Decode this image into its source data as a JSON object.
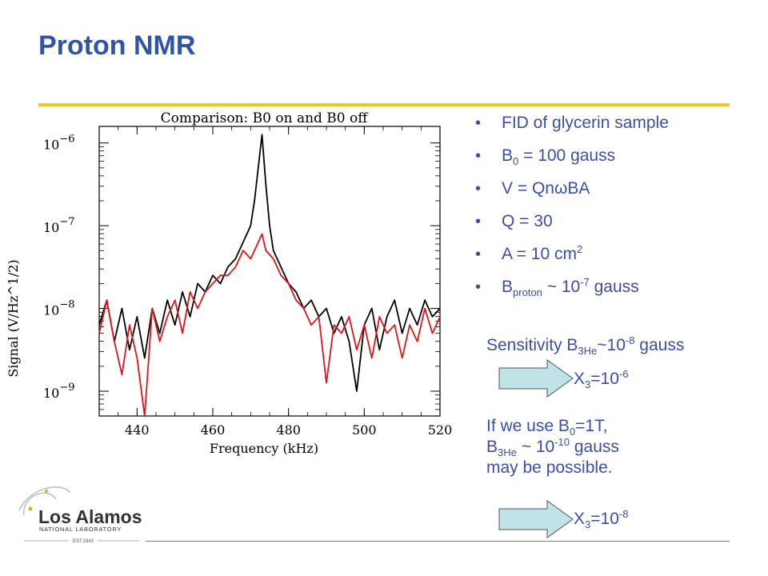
{
  "slide": {
    "title": "Proton NMR"
  },
  "bullets": [
    {
      "pre": "FID of glycerin sample",
      "sub": "",
      "mid": "",
      "sup": "",
      "post": ""
    },
    {
      "pre": "B",
      "sub": "0",
      "mid": " = 100 gauss",
      "sup": "",
      "post": ""
    },
    {
      "pre": "V = QnωBA",
      "sub": "",
      "mid": "",
      "sup": "",
      "post": ""
    },
    {
      "pre": "Q = 30",
      "sub": "",
      "mid": "",
      "sup": "",
      "post": ""
    },
    {
      "pre": "A = 10 cm",
      "sub": "",
      "mid": "",
      "sup": "2",
      "post": ""
    },
    {
      "pre": "B",
      "sub": "proton",
      "mid": " ~ 10",
      "sup": "-7",
      "post": " gauss"
    }
  ],
  "sensitivity": {
    "pre": "Sensitivity B",
    "sub": "3He",
    "mid": "~10",
    "sup": "-8",
    "post": " gauss"
  },
  "x3_first": {
    "pre": "X",
    "sub": "3",
    "mid": "=10",
    "sup": "-6"
  },
  "x3_second": {
    "pre": "X",
    "sub": "3",
    "mid": "=10",
    "sup": "-8"
  },
  "paragraph": {
    "l1_pre": "If we use B",
    "l1_sub": "0",
    "l1_post": "=1T,",
    "l2_pre": "B",
    "l2_sub": "3He",
    "l2_mid": " ~ 10",
    "l2_sup": "-10",
    "l2_post": " gauss",
    "l3": "may be possible."
  },
  "logo": {
    "name": "Los Alamos",
    "subtitle": "NATIONAL LABORATORY",
    "est": "EST.1943",
    "icon": "atom-orbit-icon"
  },
  "colors": {
    "title": "#2f56a6",
    "text": "#3d4fa5",
    "rule": "#f2c232",
    "arrow_fill": "#bfe3e6",
    "series_black": "#000000",
    "series_red": "#e0141b"
  },
  "chart_data": {
    "type": "line",
    "title": "Comparison: B0 on and B0 off",
    "xlabel": "Frequency (kHz)",
    "ylabel": "Signal (V/Hz^1/2)",
    "xlim": [
      430,
      520
    ],
    "ylim_log10": [
      -9.3,
      -5.8
    ],
    "y_scale": "log",
    "x_ticks": [
      "440",
      "460",
      "480",
      "500",
      "520"
    ],
    "x_tick_values": [
      440,
      460,
      480,
      500,
      520
    ],
    "y_ticks": [
      {
        "base": "10",
        "exp": "−6",
        "value": -6
      },
      {
        "base": "10",
        "exp": "−7",
        "value": -7
      },
      {
        "base": "10",
        "exp": "−8",
        "value": -8
      },
      {
        "base": "10",
        "exp": "−9",
        "value": -9
      }
    ],
    "series": [
      {
        "color": "black",
        "x": [
          430,
          432,
          434,
          436,
          438,
          440,
          442,
          444,
          446,
          448,
          450,
          452,
          454,
          456,
          458,
          460,
          462,
          464,
          466,
          468,
          470,
          471,
          472,
          473,
          474,
          475,
          476,
          478,
          480,
          482,
          484,
          486,
          488,
          490,
          492,
          494,
          496,
          498,
          500,
          502,
          504,
          506,
          508,
          510,
          512,
          514,
          516,
          518,
          520
        ],
        "log10y": [
          -8.2,
          -7.9,
          -8.4,
          -8.0,
          -8.5,
          -8.1,
          -8.6,
          -8.0,
          -8.3,
          -7.9,
          -8.2,
          -7.8,
          -8.1,
          -7.7,
          -7.8,
          -7.6,
          -7.7,
          -7.5,
          -7.4,
          -7.2,
          -7.0,
          -6.7,
          -6.3,
          -5.9,
          -6.5,
          -7.0,
          -7.3,
          -7.5,
          -7.7,
          -7.8,
          -8.0,
          -7.9,
          -8.1,
          -8.0,
          -8.3,
          -8.1,
          -8.4,
          -9.0,
          -8.2,
          -8.0,
          -8.5,
          -8.1,
          -7.9,
          -8.3,
          -8.0,
          -8.2,
          -7.9,
          -8.1,
          -8.0
        ]
      },
      {
        "color": "red",
        "x": [
          430,
          432,
          434,
          436,
          438,
          440,
          442,
          444,
          446,
          448,
          450,
          452,
          454,
          456,
          458,
          460,
          462,
          464,
          466,
          468,
          470,
          472,
          473,
          474,
          476,
          478,
          480,
          482,
          484,
          486,
          488,
          490,
          492,
          494,
          496,
          498,
          500,
          502,
          504,
          506,
          508,
          510,
          512,
          514,
          516,
          518,
          520
        ],
        "log10y": [
          -8.3,
          -7.9,
          -8.4,
          -8.8,
          -8.2,
          -8.6,
          -9.3,
          -8.0,
          -8.4,
          -8.1,
          -7.9,
          -8.3,
          -7.8,
          -8.0,
          -7.8,
          -7.7,
          -7.6,
          -7.6,
          -7.5,
          -7.3,
          -7.4,
          -7.2,
          -7.1,
          -7.3,
          -7.4,
          -7.6,
          -7.7,
          -7.9,
          -8.0,
          -8.2,
          -8.1,
          -8.9,
          -8.2,
          -8.3,
          -8.1,
          -8.5,
          -8.2,
          -8.6,
          -8.1,
          -8.3,
          -8.2,
          -8.6,
          -8.2,
          -8.4,
          -8.0,
          -8.3,
          -8.1
        ]
      }
    ]
  }
}
